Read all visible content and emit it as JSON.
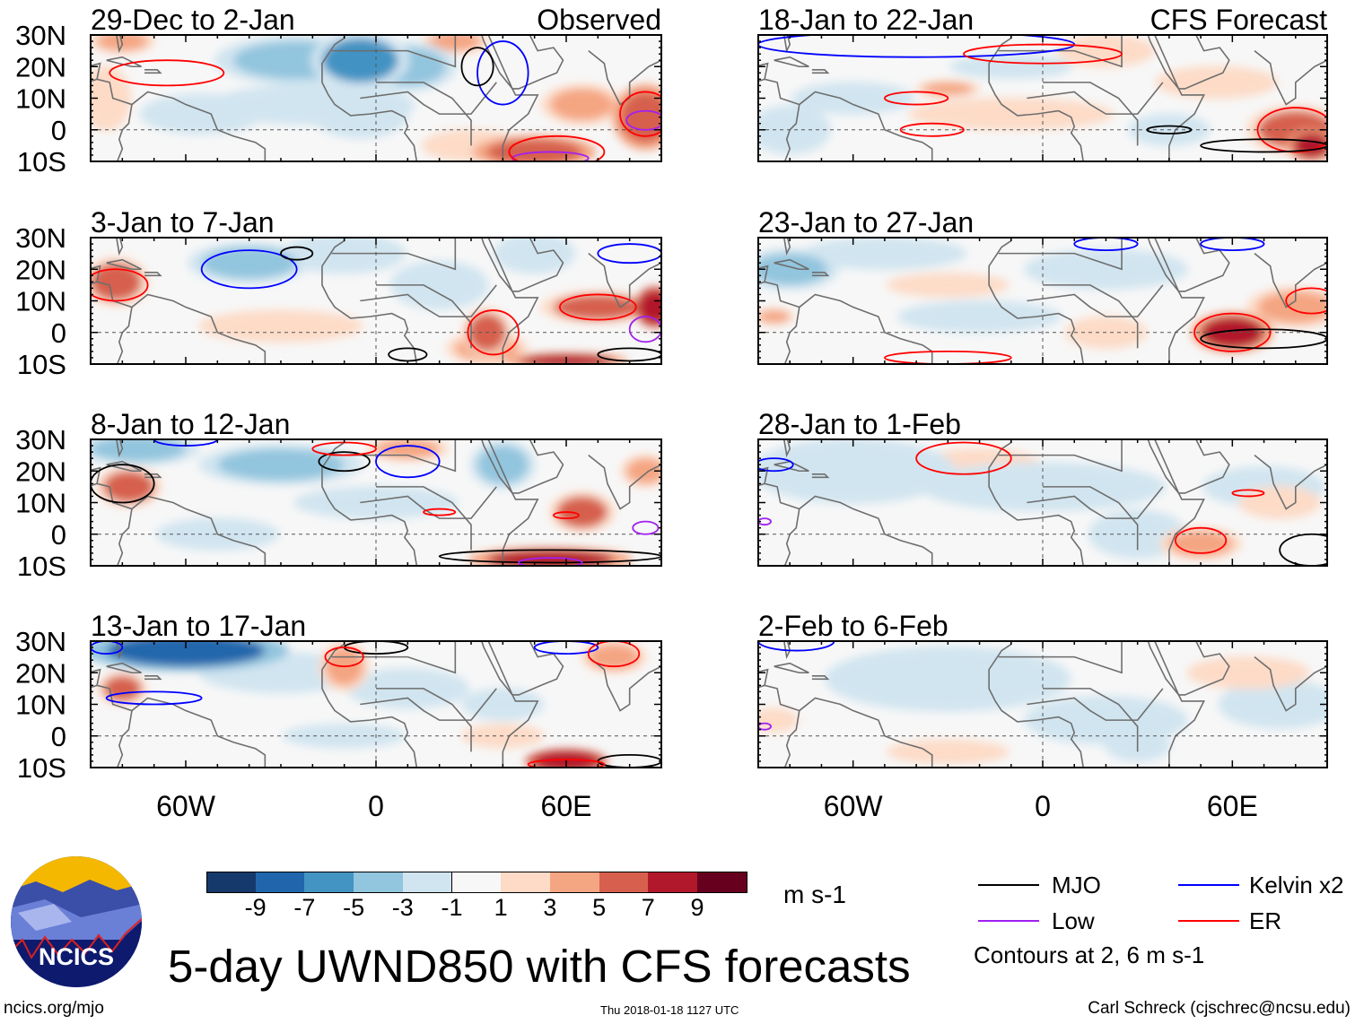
{
  "chart_data": {
    "type": "heatmap",
    "title": "5-day UWND850 with CFS forecasts",
    "variable_units": "m s-1",
    "lon_range": [
      -90,
      90
    ],
    "lat_range": [
      -10,
      30
    ],
    "lat_ticks": [
      "30N",
      "20N",
      "10N",
      "0",
      "10S"
    ],
    "lat_values": [
      30,
      20,
      10,
      0,
      -10
    ],
    "lon_ticks": [
      "60W",
      "0",
      "60E"
    ],
    "lon_values": [
      -60,
      0,
      60
    ],
    "colorbar": {
      "labels": [
        "-9",
        "-7",
        "-5",
        "-3",
        "-1",
        "1",
        "3",
        "5",
        "7",
        "9"
      ],
      "colors": [
        "#15396b",
        "#2166ac",
        "#4393c3",
        "#92c5de",
        "#d1e5f0",
        "#f7f7f7",
        "#fddbc7",
        "#f4a582",
        "#d6604d",
        "#b2182b",
        "#67001f"
      ]
    },
    "contour_colors": {
      "mjo": "#000000",
      "kelvin": "#0000ff",
      "low": "#a020f0",
      "er": "#ff0000"
    },
    "panels": [
      {
        "title": "29-Dec to 2-Jan",
        "label": "Observed",
        "anomalies": [
          [
            -25,
            22,
            20,
            6,
            -4
          ],
          [
            -5,
            22,
            12,
            7,
            -6
          ],
          [
            10,
            20,
            12,
            6,
            -5
          ],
          [
            -20,
            8,
            25,
            5,
            -2
          ],
          [
            -55,
            5,
            15,
            5,
            -2
          ],
          [
            -5,
            5,
            12,
            6,
            -2
          ],
          [
            -85,
            10,
            6,
            8,
            2
          ],
          [
            65,
            8,
            10,
            5,
            4
          ],
          [
            85,
            4,
            8,
            8,
            6
          ],
          [
            50,
            -7,
            15,
            4,
            6
          ],
          [
            30,
            -5,
            12,
            4,
            2
          ],
          [
            -80,
            28,
            8,
            3,
            3
          ],
          [
            25,
            28,
            8,
            3,
            3
          ]
        ],
        "contours": [
          [
            -66,
            18,
            18,
            4,
            "er"
          ],
          [
            40,
            18,
            8,
            10,
            "kelvin"
          ],
          [
            32,
            20,
            5,
            6,
            "mjo"
          ],
          [
            55,
            -9,
            12,
            2,
            "low"
          ],
          [
            85,
            3,
            6,
            3,
            "low"
          ],
          [
            57,
            -7,
            15,
            5,
            "er"
          ],
          [
            85,
            5,
            8,
            7,
            "er"
          ]
        ]
      },
      {
        "title": "3-Jan to 7-Jan",
        "label": "",
        "anomalies": [
          [
            -40,
            22,
            15,
            5,
            -5
          ],
          [
            20,
            15,
            12,
            6,
            -3
          ],
          [
            -10,
            25,
            15,
            5,
            -2
          ],
          [
            50,
            25,
            10,
            5,
            -2
          ],
          [
            -82,
            16,
            8,
            6,
            5
          ],
          [
            70,
            8,
            14,
            4,
            5
          ],
          [
            88,
            8,
            5,
            5,
            8
          ],
          [
            35,
            0,
            6,
            6,
            5
          ],
          [
            35,
            -5,
            10,
            4,
            4
          ],
          [
            -30,
            2,
            20,
            4,
            2
          ],
          [
            60,
            -9,
            15,
            2,
            7
          ]
        ],
        "contours": [
          [
            -40,
            20,
            15,
            6,
            "kelvin"
          ],
          [
            80,
            25,
            10,
            3,
            "kelvin"
          ],
          [
            -82,
            15,
            10,
            5,
            "er"
          ],
          [
            37,
            0,
            8,
            7,
            "er"
          ],
          [
            70,
            8,
            12,
            4,
            "er"
          ],
          [
            -25,
            25,
            5,
            2,
            "mjo"
          ],
          [
            10,
            -7,
            6,
            2,
            "mjo"
          ],
          [
            80,
            -7,
            10,
            2,
            "mjo"
          ],
          [
            85,
            1,
            5,
            4,
            "low"
          ]
        ]
      },
      {
        "title": "8-Jan to 12-Jan",
        "label": "",
        "anomalies": [
          [
            -75,
            27,
            15,
            4,
            -5
          ],
          [
            -30,
            22,
            20,
            5,
            -4
          ],
          [
            40,
            22,
            8,
            6,
            -5
          ],
          [
            0,
            10,
            20,
            4,
            -2
          ],
          [
            -50,
            0,
            15,
            4,
            -2
          ],
          [
            -78,
            15,
            8,
            5,
            5
          ],
          [
            65,
            7,
            8,
            5,
            5
          ],
          [
            55,
            -8,
            20,
            3,
            7
          ],
          [
            10,
            27,
            10,
            3,
            3
          ],
          [
            85,
            20,
            6,
            4,
            3
          ]
        ],
        "contours": [
          [
            10,
            23,
            10,
            5,
            "kelvin"
          ],
          [
            -60,
            30,
            10,
            2,
            "kelvin"
          ],
          [
            -80,
            16,
            10,
            6,
            "mjo"
          ],
          [
            -10,
            23,
            8,
            3,
            "mjo"
          ],
          [
            55,
            -7,
            35,
            2,
            "mjo"
          ],
          [
            -10,
            27,
            10,
            2,
            "er"
          ],
          [
            20,
            7,
            5,
            1,
            "er"
          ],
          [
            60,
            6,
            4,
            1,
            "er"
          ],
          [
            55,
            -9,
            10,
            1.5,
            "low"
          ],
          [
            85,
            2,
            4,
            2,
            "low"
          ]
        ]
      },
      {
        "title": "13-Jan to 17-Jan",
        "label": "",
        "anomalies": [
          [
            -60,
            27,
            25,
            5,
            -8
          ],
          [
            -30,
            20,
            20,
            5,
            -3
          ],
          [
            10,
            15,
            15,
            5,
            -3
          ],
          [
            40,
            10,
            10,
            4,
            -2
          ],
          [
            -10,
            0,
            15,
            3,
            -2
          ],
          [
            -80,
            15,
            6,
            4,
            5
          ],
          [
            60,
            -8,
            10,
            3,
            8
          ],
          [
            -10,
            22,
            6,
            6,
            3
          ],
          [
            75,
            25,
            8,
            4,
            3
          ],
          [
            40,
            0,
            10,
            3,
            2
          ]
        ],
        "contours": [
          [
            -70,
            12,
            15,
            2,
            "kelvin"
          ],
          [
            60,
            28,
            10,
            2,
            "kelvin"
          ],
          [
            -85,
            28,
            5,
            2,
            "kelvin"
          ],
          [
            0,
            28,
            10,
            2,
            "mjo"
          ],
          [
            80,
            -8,
            10,
            2,
            "mjo"
          ],
          [
            -10,
            25,
            6,
            3,
            "er"
          ],
          [
            75,
            26,
            8,
            4,
            "er"
          ],
          [
            60,
            -9,
            12,
            1.5,
            "er"
          ]
        ]
      },
      {
        "title": "18-Jan to 22-Jan",
        "label": "CFS Forecast",
        "anomalies": [
          [
            -10,
            5,
            25,
            4,
            2
          ],
          [
            -30,
            13,
            8,
            2,
            3
          ],
          [
            20,
            25,
            12,
            4,
            2
          ],
          [
            80,
            0,
            12,
            6,
            5
          ],
          [
            55,
            15,
            15,
            4,
            2
          ],
          [
            85,
            -5,
            6,
            4,
            7
          ],
          [
            -80,
            0,
            10,
            6,
            -3
          ],
          [
            -60,
            10,
            15,
            4,
            -2
          ],
          [
            40,
            0,
            10,
            4,
            -2
          ],
          [
            -10,
            20,
            15,
            3,
            -2
          ]
        ],
        "contours": [
          [
            -40,
            27,
            50,
            4,
            "kelvin"
          ],
          [
            -40,
            10,
            10,
            2,
            "er"
          ],
          [
            -35,
            0,
            10,
            2,
            "er"
          ],
          [
            0,
            24,
            25,
            3,
            "er"
          ],
          [
            80,
            0,
            12,
            7,
            "er"
          ],
          [
            40,
            0,
            7,
            1.2,
            "mjo"
          ],
          [
            70,
            -5,
            20,
            2,
            "mjo"
          ]
        ]
      },
      {
        "title": "23-Jan to 27-Jan",
        "label": "",
        "anomalies": [
          [
            -80,
            20,
            12,
            5,
            -4
          ],
          [
            -50,
            25,
            20,
            4,
            -2
          ],
          [
            20,
            20,
            20,
            5,
            -2
          ],
          [
            -20,
            5,
            20,
            4,
            -2
          ],
          [
            60,
            0,
            10,
            5,
            7
          ],
          [
            80,
            8,
            12,
            5,
            4
          ],
          [
            -85,
            5,
            5,
            2,
            4
          ],
          [
            -30,
            15,
            15,
            3,
            2
          ],
          [
            20,
            0,
            10,
            4,
            2
          ]
        ],
        "contours": [
          [
            60,
            0,
            12,
            6,
            "er"
          ],
          [
            85,
            10,
            8,
            4,
            "er"
          ],
          [
            -30,
            -8,
            20,
            2,
            "er"
          ],
          [
            70,
            -2,
            20,
            3,
            "mjo"
          ],
          [
            20,
            28,
            10,
            2,
            "kelvin"
          ],
          [
            60,
            28,
            10,
            2,
            "kelvin"
          ]
        ]
      },
      {
        "title": "28-Jan to 1-Feb",
        "label": "",
        "anomalies": [
          [
            -60,
            20,
            25,
            8,
            -2
          ],
          [
            0,
            15,
            30,
            6,
            -2
          ],
          [
            30,
            0,
            12,
            6,
            -3
          ],
          [
            70,
            15,
            15,
            5,
            -2
          ],
          [
            50,
            -3,
            10,
            4,
            3
          ],
          [
            75,
            10,
            10,
            4,
            2
          ],
          [
            -20,
            22,
            15,
            4,
            1.5
          ]
        ],
        "contours": [
          [
            -25,
            24,
            15,
            5,
            "er"
          ],
          [
            65,
            13,
            5,
            1,
            "er"
          ],
          [
            50,
            -2,
            8,
            4,
            "er"
          ],
          [
            -85,
            22,
            6,
            2,
            "kelvin"
          ],
          [
            -88,
            4,
            2,
            1,
            "low"
          ],
          [
            85,
            -5,
            10,
            5,
            "mjo"
          ]
        ]
      },
      {
        "title": "2-Feb to 6-Feb",
        "label": "",
        "anomalies": [
          [
            -30,
            18,
            30,
            8,
            -2
          ],
          [
            20,
            5,
            20,
            6,
            -2
          ],
          [
            30,
            -3,
            8,
            4,
            -3
          ],
          [
            75,
            10,
            15,
            6,
            -2
          ],
          [
            65,
            20,
            15,
            4,
            2
          ],
          [
            -85,
            5,
            6,
            3,
            2
          ],
          [
            -30,
            -5,
            15,
            3,
            1.5
          ]
        ],
        "contours": [
          [
            -78,
            30,
            12,
            3,
            "kelvin"
          ],
          [
            -88,
            3,
            2,
            1,
            "low"
          ]
        ]
      }
    ]
  },
  "colorbar_units": "m s-1",
  "legend": {
    "mjo": "MJO",
    "kelvin": "Kelvin x2",
    "low": "Low",
    "er": "ER",
    "note": "Contours at 2, 6 m s-1"
  },
  "footer": {
    "url": "ncics.org/mjo",
    "timestamp": "Thu 2018-01-18 1127 UTC",
    "author": "Carl Schreck (cjschrec@ncsu.edu)",
    "logo_text": "NCICS"
  }
}
